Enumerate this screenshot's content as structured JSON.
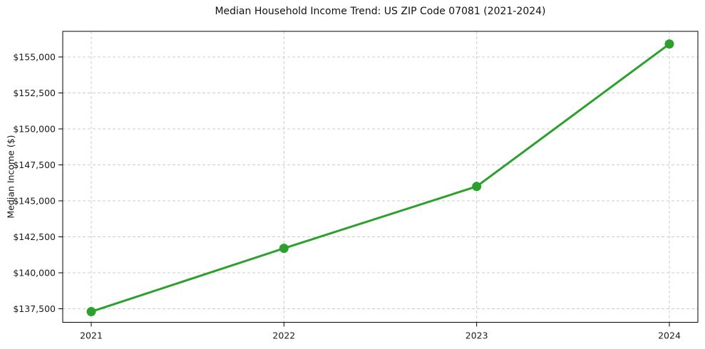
{
  "chart_data": {
    "type": "line",
    "title": "Median Household Income Trend: US ZIP Code 07081 (2021-2024)",
    "xlabel": "",
    "ylabel": "Median Income ($)",
    "categories": [
      "2021",
      "2022",
      "2023",
      "2024"
    ],
    "series": [
      {
        "name": "Median Household Income",
        "values": [
          137300,
          141700,
          146000,
          155900
        ]
      }
    ],
    "ylim": [
      136560,
      156780
    ],
    "ytick_values": [
      137500,
      140000,
      142500,
      145000,
      147500,
      150000,
      152500,
      155000
    ],
    "ytick_labels": [
      "$137,500",
      "$140,000",
      "$142,500",
      "$145,000",
      "$147,500",
      "$150,000",
      "$152,500",
      "$155,000"
    ],
    "grid": true,
    "grid_style": "dashed",
    "legend": "none",
    "colors": {
      "line": "#2ca02c",
      "marker": "#2ca02c",
      "grid": "#cccccc",
      "spine": "#000000",
      "text": "#1a1a1a",
      "background": "#ffffff"
    }
  }
}
